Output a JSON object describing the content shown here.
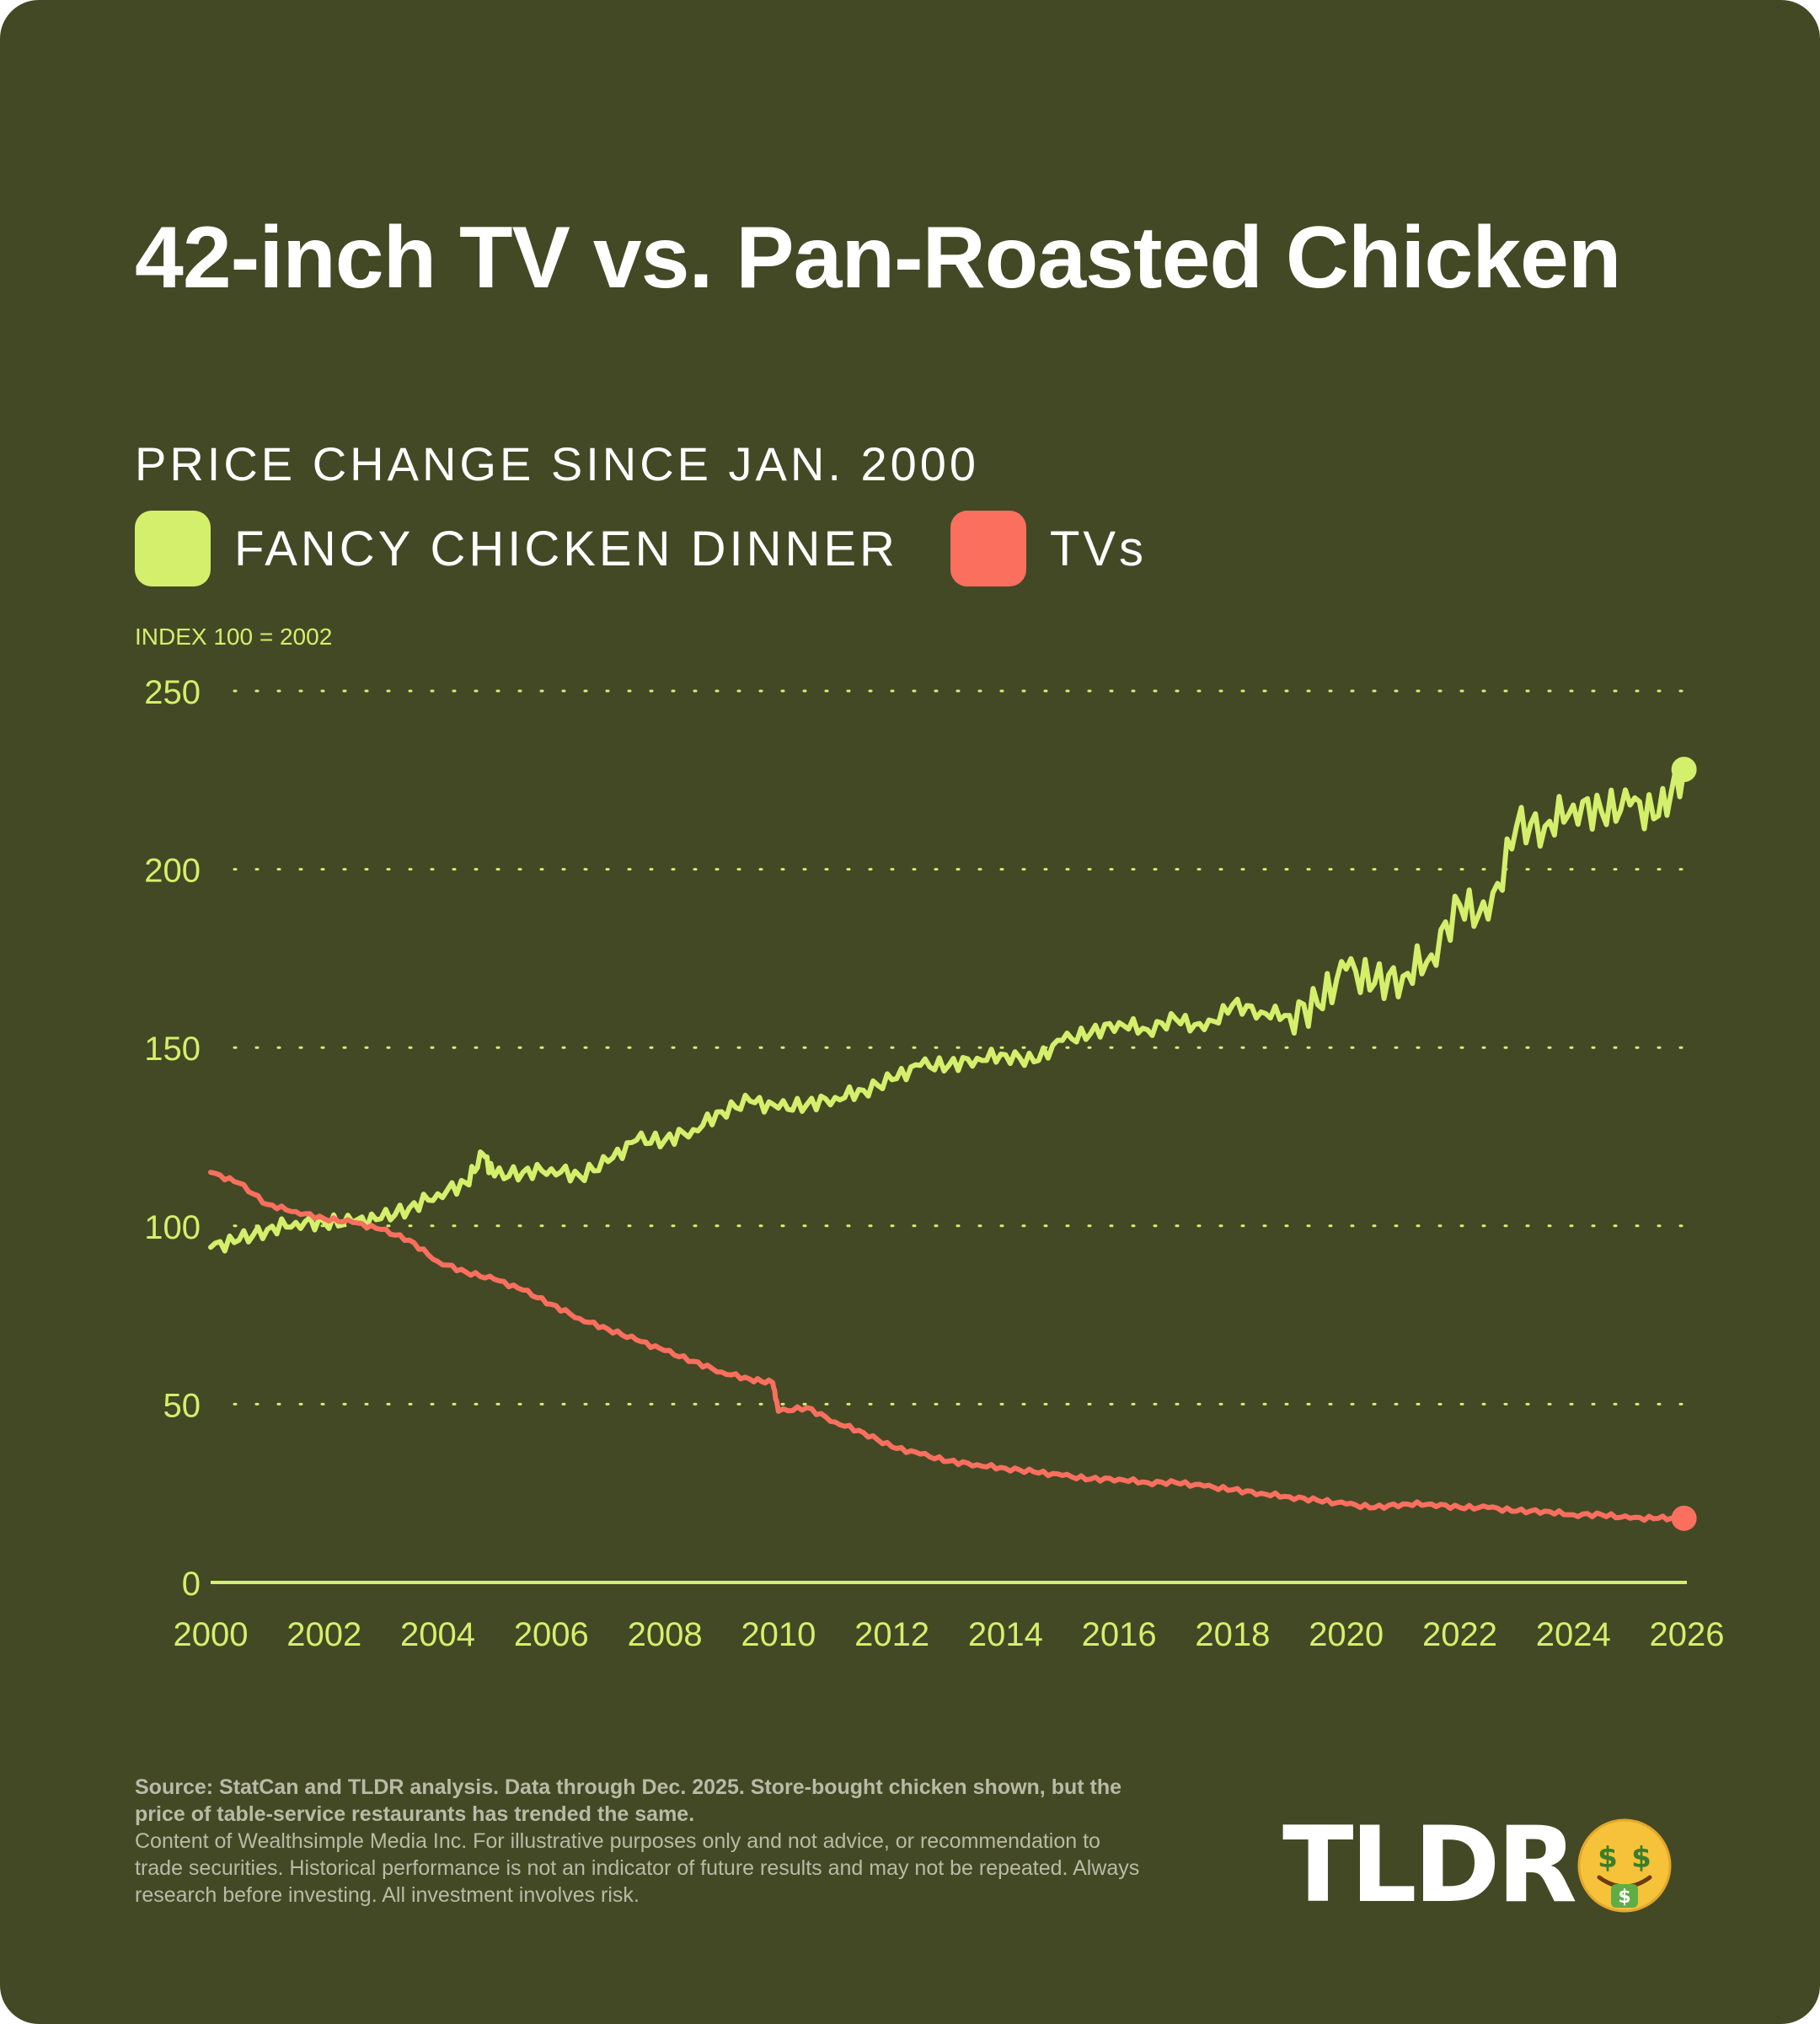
{
  "title": "42-inch TV vs. Pan-Roasted Chicken",
  "subtitle": "PRICE CHANGE SINCE JAN. 2000",
  "index_note": "INDEX 100 = 2002",
  "legend": [
    {
      "label": "FANCY CHICKEN DINNER",
      "color": "#d4ef6b"
    },
    {
      "label": "TVs",
      "color": "#fa6f5e"
    }
  ],
  "source_bold": "Source: StatCan and TLDR analysis. Data through Dec. 2025. Store-bought chicken shown, but the price of table-service restaurants has trended the same.",
  "disclaimer": "Content of Wealthsimple Media Inc. For illustrative purposes only and not advice, or recommendation to trade securities. Historical performance is not an indicator of future results and may not be repeated. Always research before investing. All investment involves risk.",
  "logo": {
    "text": "TLDR",
    "icon": "money-mouth-face-icon"
  },
  "colors": {
    "background": "#434925",
    "chicken": "#d4ef6b",
    "tv": "#fa6f5e",
    "axis": "#d4ef6b"
  },
  "chart_data": {
    "type": "line",
    "ylim": [
      0,
      250
    ],
    "yticks": [
      0,
      50,
      100,
      150,
      200,
      250
    ],
    "xlim": [
      2000,
      2026
    ],
    "xticks": [
      2000,
      2002,
      2004,
      2006,
      2008,
      2010,
      2012,
      2014,
      2016,
      2018,
      2020,
      2022,
      2024,
      2026
    ],
    "grid": "horizontal-dotted",
    "series": [
      {
        "name": "FANCY CHICKEN DINNER",
        "color": "#d4ef6b",
        "x": [
          2000,
          2000.5,
          2001,
          2001.5,
          2002,
          2002.5,
          2003,
          2003.5,
          2004,
          2004.5,
          2004.8,
          2005,
          2005.5,
          2006,
          2006.5,
          2007,
          2007.5,
          2008,
          2008.5,
          2009,
          2009.5,
          2010,
          2010.5,
          2011,
          2011.5,
          2012,
          2012.5,
          2013,
          2013.5,
          2014,
          2014.5,
          2015,
          2015.5,
          2016,
          2016.5,
          2017,
          2017.5,
          2018,
          2018.5,
          2019,
          2019.5,
          2020,
          2020.5,
          2021,
          2021.5,
          2022,
          2022.5,
          2023,
          2023.5,
          2024,
          2024.5,
          2025,
          2025.5,
          2025.95
        ],
        "y": [
          94,
          96,
          99,
          101,
          101,
          101,
          102,
          105,
          109,
          112,
          120,
          114,
          115,
          116,
          114,
          118,
          124,
          124,
          127,
          132,
          135,
          133,
          134,
          136,
          138,
          141,
          145,
          145,
          147,
          148,
          146,
          152,
          154,
          157,
          155,
          158,
          155,
          162,
          160,
          159,
          162,
          172,
          168,
          170,
          176,
          190,
          186,
          212,
          212,
          218,
          216,
          218,
          215,
          228
        ]
      },
      {
        "name": "TVs",
        "color": "#fa6f5e",
        "x": [
          2000,
          2000.5,
          2001,
          2001.5,
          2002,
          2002.5,
          2003,
          2003.5,
          2004,
          2004.5,
          2005,
          2005.5,
          2006,
          2006.5,
          2007,
          2007.5,
          2008,
          2008.5,
          2009,
          2009.5,
          2009.9,
          2010,
          2010.5,
          2011,
          2011.5,
          2012,
          2012.5,
          2013,
          2013.5,
          2014,
          2014.5,
          2015,
          2015.5,
          2016,
          2016.5,
          2017,
          2017.5,
          2018,
          2018.5,
          2019,
          2019.5,
          2020,
          2020.5,
          2021,
          2021.5,
          2022,
          2022.5,
          2023,
          2023.5,
          2024,
          2024.5,
          2025,
          2025.5,
          2025.95
        ],
        "y": [
          115,
          112,
          106,
          104,
          102,
          101,
          99,
          96,
          90,
          87,
          85,
          82,
          78,
          74,
          71,
          68,
          65,
          62,
          59,
          57,
          56,
          48,
          49,
          45,
          42,
          38,
          36,
          34,
          33,
          32,
          31,
          30,
          29,
          29,
          28,
          28,
          27,
          26,
          25,
          24,
          23,
          22,
          21,
          22,
          22,
          21,
          21,
          20,
          20,
          19,
          19,
          18,
          18,
          18
        ]
      }
    ]
  }
}
